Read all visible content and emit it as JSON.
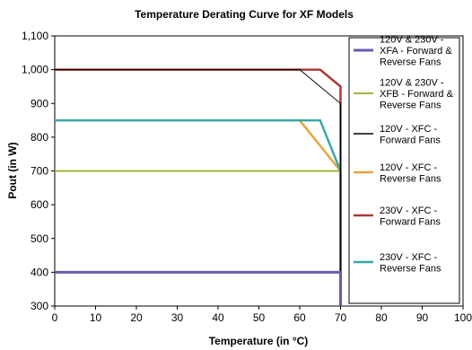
{
  "chart_data": {
    "type": "line",
    "title": "Temperature Derating Curve for XF Models",
    "xlabel": "Temperature (in °C)",
    "ylabel": "Pout (in W)",
    "xlim": [
      0,
      100
    ],
    "ylim": [
      300,
      1100
    ],
    "xticks": [
      0,
      10,
      20,
      30,
      40,
      50,
      60,
      70,
      80,
      90,
      100
    ],
    "yticks": [
      300,
      400,
      500,
      600,
      700,
      800,
      900,
      1000,
      1100
    ],
    "ytick_labels": [
      "300",
      "400",
      "500",
      "600",
      "700",
      "800",
      "900",
      "1,000",
      "1,100"
    ],
    "grid": false,
    "legend_position": "right",
    "series": [
      {
        "name": "120V & 230V - XFA - Forward & Reverse Fans",
        "legend_lines": [
          "120V & 230V -",
          "XFA - Forward &",
          "Reverse Fans"
        ],
        "color": "#6a5bab",
        "width": 3,
        "points": [
          [
            0,
            400
          ],
          [
            70,
            400
          ],
          [
            70,
            300
          ]
        ]
      },
      {
        "name": "120V & 230V - XFB - Forward & Reverse Fans",
        "legend_lines": [
          "120V & 230V -",
          "XFB - Forward &",
          "Reverse Fans"
        ],
        "color": "#a5b23a",
        "width": 2,
        "points": [
          [
            0,
            700
          ],
          [
            70,
            700
          ],
          [
            70,
            300
          ]
        ]
      },
      {
        "name": "120V - XFC - Forward Fans",
        "legend_lines": [
          "120V - XFC -",
          "Forward Fans"
        ],
        "color": "#000000",
        "width": 1,
        "points": [
          [
            0,
            1000
          ],
          [
            60,
            1000
          ],
          [
            70,
            900
          ],
          [
            70,
            300
          ]
        ]
      },
      {
        "name": "120V - XFC - Reverse Fans",
        "legend_lines": [
          "120V - XFC -",
          "Reverse Fans"
        ],
        "color": "#e8a33c",
        "width": 2.5,
        "points": [
          [
            0,
            850
          ],
          [
            60,
            850
          ],
          [
            70,
            700
          ],
          [
            70,
            300
          ]
        ]
      },
      {
        "name": "230V - XFC - Forward Fans",
        "legend_lines": [
          "230V - XFC -",
          "Forward Fans"
        ],
        "color": "#a93a37",
        "width": 2.5,
        "points": [
          [
            0,
            1000
          ],
          [
            65,
            1000
          ],
          [
            70,
            950
          ],
          [
            70,
            300
          ]
        ]
      },
      {
        "name": "230V - XFC - Reverse Fans",
        "legend_lines": [
          "230V - XFC -",
          "Reverse Fans"
        ],
        "color": "#3aa7a8",
        "width": 2.5,
        "points": [
          [
            0,
            850
          ],
          [
            65,
            850
          ],
          [
            70,
            700
          ],
          [
            70,
            300
          ]
        ]
      }
    ]
  }
}
